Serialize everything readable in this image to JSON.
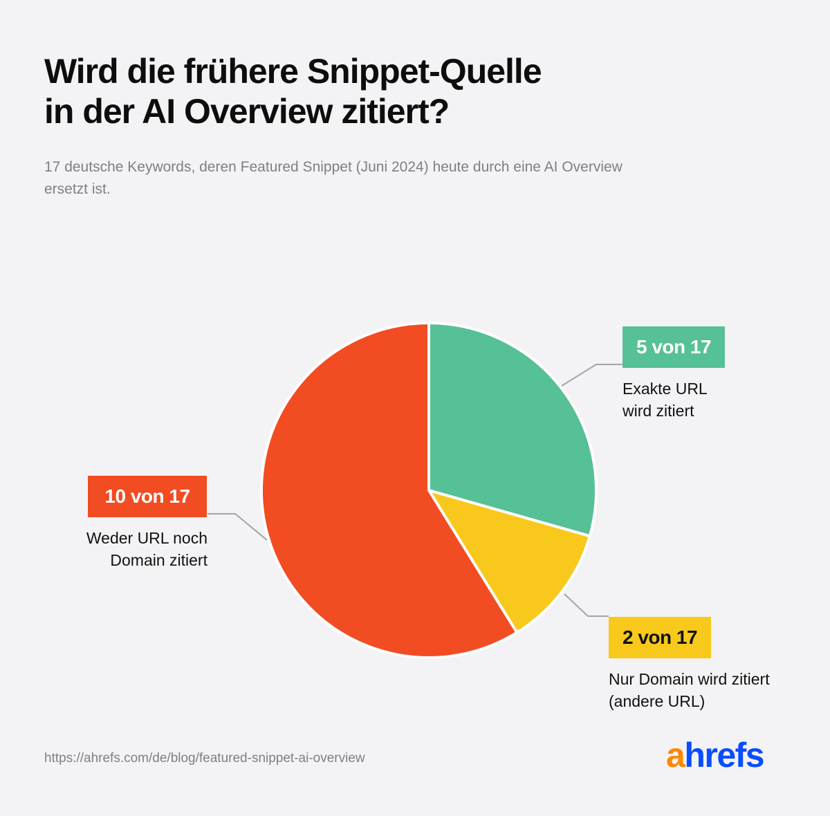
{
  "title_lines": [
    "Wird die frühere Snippet-Quelle",
    "in der AI Overview zitiert?"
  ],
  "subtitle_lines": [
    "17 deutsche Keywords, deren Featured Snippet (Juni 2024) heute durch eine AI Overview",
    "ersetzt ist."
  ],
  "chart_data": {
    "type": "pie",
    "total": 17,
    "slices": [
      {
        "value": 5,
        "badge": "5 von 17",
        "label_lines": [
          "Exakte URL",
          "wird zitiert"
        ],
        "color": "#56c096",
        "badge_text_color": "#ffffff"
      },
      {
        "value": 2,
        "badge": "2 von 17",
        "label_lines": [
          "Nur Domain wird zitiert",
          "(andere URL)"
        ],
        "color": "#f8c81c",
        "badge_text_color": "#111111"
      },
      {
        "value": 10,
        "badge": "10 von 17",
        "label_lines": [
          "Weder URL noch",
          "Domain zitiert"
        ],
        "color": "#f24c22",
        "badge_text_color": "#ffffff"
      }
    ]
  },
  "source": "https://ahrefs.com/de/blog/featured-snippet-ai-overview",
  "logo": {
    "part1": "a",
    "part2": "hrefs",
    "color1": "#ff8800",
    "color2": "#0a4cff"
  }
}
